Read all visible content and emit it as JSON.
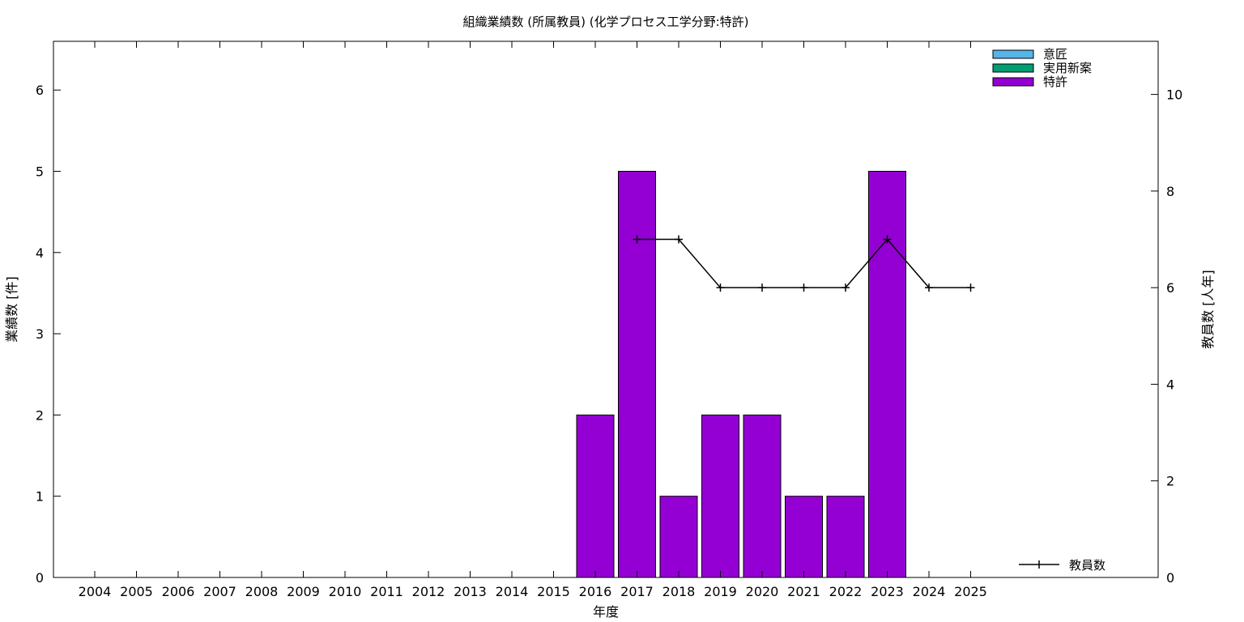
{
  "chart_data": {
    "type": "bar",
    "title": "組織業績数 (所属教員) (化学プロセス工学分野:特許)",
    "xlabel": "年度",
    "ylabel": "業績数 [件]",
    "y2label": "教員数 [人年]",
    "categories": [
      "2004",
      "2005",
      "2006",
      "2007",
      "2008",
      "2009",
      "2010",
      "2011",
      "2012",
      "2013",
      "2014",
      "2015",
      "2016",
      "2017",
      "2018",
      "2019",
      "2020",
      "2021",
      "2022",
      "2023",
      "2024",
      "2025"
    ],
    "ylim": [
      0,
      6.6
    ],
    "yticks": [
      0,
      1,
      2,
      3,
      4,
      5,
      6
    ],
    "y2lim": [
      0,
      11.1
    ],
    "y2ticks": [
      0,
      2,
      4,
      6,
      8,
      10
    ],
    "grid": false,
    "legend_position": "top-right",
    "series": [
      {
        "name": "意匠",
        "color": "#56b4e9",
        "values": [
          0,
          0,
          0,
          0,
          0,
          0,
          0,
          0,
          0,
          0,
          0,
          0,
          0,
          0,
          0,
          0,
          0,
          0,
          0,
          0,
          0,
          0
        ]
      },
      {
        "name": "実用新案",
        "color": "#009e73",
        "values": [
          0,
          0,
          0,
          0,
          0,
          0,
          0,
          0,
          0,
          0,
          0,
          0,
          0,
          0,
          0,
          0,
          0,
          0,
          0,
          0,
          0,
          0
        ]
      },
      {
        "name": "特許",
        "color": "#9400d3",
        "values": [
          0,
          0,
          0,
          0,
          0,
          0,
          0,
          0,
          0,
          0,
          0,
          0,
          2,
          5,
          1,
          2,
          2,
          1,
          1,
          5,
          0,
          0
        ]
      }
    ],
    "line_series": {
      "name": "教員数",
      "axis": "right",
      "color": "#000000",
      "values": [
        null,
        null,
        null,
        null,
        null,
        null,
        null,
        null,
        null,
        null,
        null,
        null,
        null,
        7,
        7,
        6,
        6,
        6,
        6,
        7,
        6,
        6
      ]
    }
  }
}
